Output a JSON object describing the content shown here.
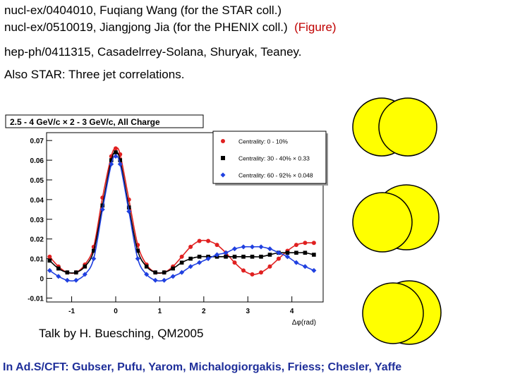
{
  "references": {
    "line1": "nucl-ex/0404010, Fuqiang Wang (for the STAR coll.)",
    "line2": "nucl-ex/0510019, Jiangjong Jia (for the PHENIX coll.)",
    "line2_link": "(Figure)",
    "line3": "hep-ph/0411315, Casadelrrey-Solana, Shuryak, Teaney.",
    "line4": "Also STAR: Three jet correlations."
  },
  "talk": "Talk by H. Buesching, QM2005",
  "footer": "In Ad.S/CFT: Gubser, Pufu, Yarom, Michalogiorgakis, Friess; Chesler, Yaffe",
  "colors": {
    "series_red": "#e02020",
    "series_black": "#000000",
    "series_blue": "#2040e0",
    "circle_fill": "#ffff00",
    "footer_text": "#1f2f9a",
    "link_red": "#c00000"
  },
  "chart_data": {
    "type": "scatter",
    "title": "2.5 - 4 GeV/c × 2 - 3 GeV/c,  All Charge",
    "xlabel": "Δφ(rad)",
    "ylabel": "",
    "xlim": [
      -1.57,
      4.71
    ],
    "ylim": [
      -0.012,
      0.074
    ],
    "x_ticks": [
      "-1",
      "0",
      "1",
      "2",
      "3",
      "4"
    ],
    "x_tick_values": [
      -1,
      0,
      1,
      2,
      3,
      4
    ],
    "y_ticks": [
      "-0.01",
      "0",
      "0.01",
      "0.02",
      "0.03",
      "0.04",
      "0.05",
      "0.06",
      "0.07"
    ],
    "y_tick_values": [
      -0.01,
      0,
      0.01,
      0.02,
      0.03,
      0.04,
      0.05,
      0.06,
      0.07
    ],
    "grid": false,
    "legend_position": "top-right",
    "series": [
      {
        "name": "Centrality: 0 - 10%",
        "marker": "circle",
        "color": "#e02020",
        "x": [
          -1.5,
          -1.3,
          -1.1,
          -0.9,
          -0.7,
          -0.5,
          -0.3,
          -0.1,
          0.0,
          0.1,
          0.3,
          0.5,
          0.7,
          0.9,
          1.1,
          1.3,
          1.5,
          1.7,
          1.9,
          2.1,
          2.3,
          2.5,
          2.7,
          2.9,
          3.1,
          3.3,
          3.5,
          3.7,
          3.9,
          4.1,
          4.3,
          4.5
        ],
        "y": [
          0.011,
          0.006,
          0.003,
          0.003,
          0.007,
          0.016,
          0.041,
          0.062,
          0.066,
          0.063,
          0.04,
          0.017,
          0.007,
          0.003,
          0.003,
          0.006,
          0.011,
          0.016,
          0.019,
          0.019,
          0.017,
          0.013,
          0.008,
          0.004,
          0.002,
          0.003,
          0.006,
          0.01,
          0.014,
          0.017,
          0.018,
          0.018
        ]
      },
      {
        "name": "Centrality: 30 - 40% × 0.33",
        "marker": "square",
        "color": "#000000",
        "x": [
          -1.5,
          -1.3,
          -1.1,
          -0.9,
          -0.7,
          -0.5,
          -0.3,
          -0.1,
          0.0,
          0.1,
          0.3,
          0.5,
          0.7,
          0.9,
          1.1,
          1.3,
          1.5,
          1.7,
          1.9,
          2.1,
          2.3,
          2.5,
          2.7,
          2.9,
          3.1,
          3.3,
          3.5,
          3.7,
          3.9,
          4.1,
          4.3,
          4.5
        ],
        "y": [
          0.009,
          0.005,
          0.003,
          0.003,
          0.006,
          0.014,
          0.037,
          0.06,
          0.064,
          0.06,
          0.036,
          0.014,
          0.006,
          0.003,
          0.003,
          0.005,
          0.008,
          0.01,
          0.011,
          0.011,
          0.011,
          0.011,
          0.011,
          0.011,
          0.011,
          0.011,
          0.012,
          0.013,
          0.013,
          0.013,
          0.013,
          0.012
        ]
      },
      {
        "name": "Centrality: 60 - 92% × 0.048",
        "marker": "diamond",
        "color": "#2040e0",
        "x": [
          -1.5,
          -1.3,
          -1.1,
          -0.9,
          -0.7,
          -0.5,
          -0.3,
          -0.1,
          0.0,
          0.1,
          0.3,
          0.5,
          0.7,
          0.9,
          1.1,
          1.3,
          1.5,
          1.7,
          1.9,
          2.1,
          2.3,
          2.5,
          2.7,
          2.9,
          3.1,
          3.3,
          3.5,
          3.7,
          3.9,
          4.1,
          4.3,
          4.5
        ],
        "y": [
          0.004,
          0.001,
          -0.001,
          -0.001,
          0.002,
          0.01,
          0.035,
          0.058,
          0.062,
          0.058,
          0.034,
          0.01,
          0.002,
          -0.001,
          -0.001,
          0.001,
          0.003,
          0.006,
          0.008,
          0.01,
          0.012,
          0.013,
          0.015,
          0.016,
          0.016,
          0.016,
          0.015,
          0.013,
          0.011,
          0.008,
          0.006,
          0.004
        ]
      }
    ]
  }
}
